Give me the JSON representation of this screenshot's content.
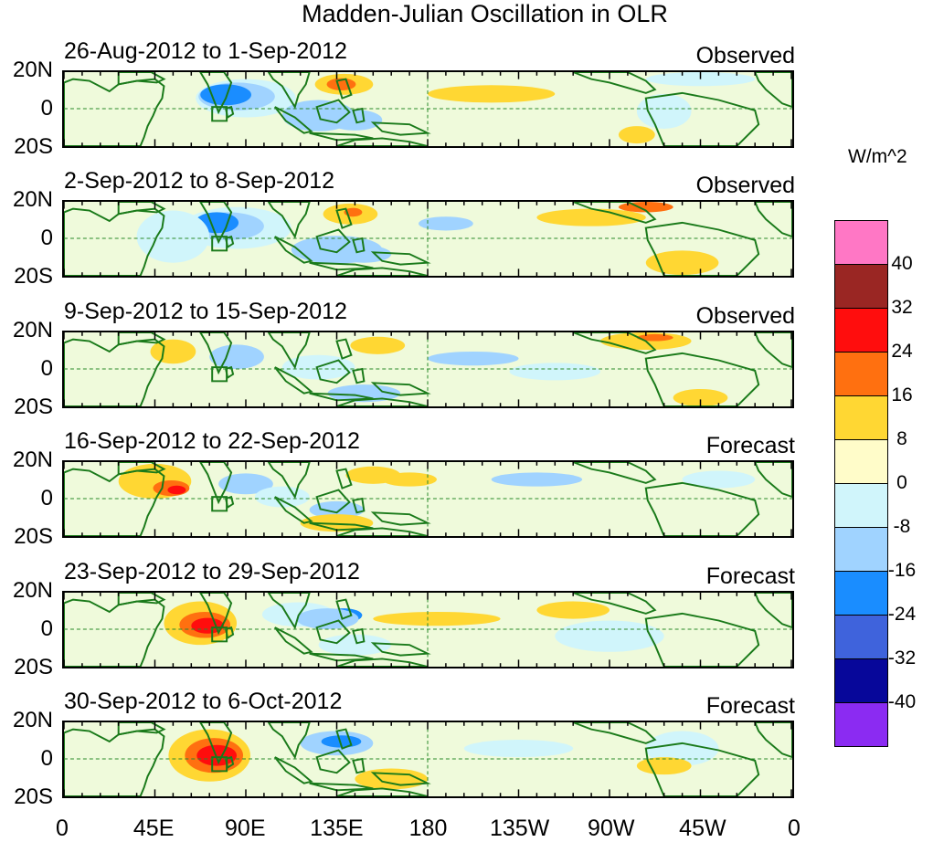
{
  "title": "Madden-Julian Oscillation in OLR",
  "panels": [
    {
      "date": "26-Aug-2012 to 1-Sep-2012",
      "kind": "Observed"
    },
    {
      "date": "2-Sep-2012 to 8-Sep-2012",
      "kind": "Observed"
    },
    {
      "date": "9-Sep-2012 to 15-Sep-2012",
      "kind": "Observed"
    },
    {
      "date": "16-Sep-2012 to 22-Sep-2012",
      "kind": "Forecast"
    },
    {
      "date": "23-Sep-2012 to 29-Sep-2012",
      "kind": "Forecast"
    },
    {
      "date": "30-Sep-2012 to 6-Oct-2012",
      "kind": "Forecast"
    }
  ],
  "lat_labels": {
    "north": "20N",
    "eq": "0",
    "south": "20S"
  },
  "lon_labels": [
    "0",
    "45E",
    "90E",
    "135E",
    "180",
    "135W",
    "90W",
    "45W",
    "0"
  ],
  "colorbar": {
    "units": "W/m^2",
    "colors": [
      "#ff77c5",
      "#9a2623",
      "#ff0d0d",
      "#ff7010",
      "#ffd733",
      "#fffcc9",
      "#d0f5fb",
      "#a0d3ff",
      "#1a8dff",
      "#3f63dc",
      "#07079a",
      "#8b2bf2"
    ],
    "labels": [
      "40",
      "32",
      "24",
      "16",
      "8",
      "0",
      "-8",
      "-16",
      "-24",
      "-32",
      "-40"
    ]
  },
  "legend_colors": {
    "land": "#1a7a1a",
    "background": "#fffcc9",
    "neg_light": "#d0f5fb",
    "neg_mid": "#a0d3ff",
    "neg_strong": "#1a8dff",
    "pos_mid": "#ffd733",
    "pos_strong": "#ff7010",
    "pos_max": "#ff0d0d"
  }
}
